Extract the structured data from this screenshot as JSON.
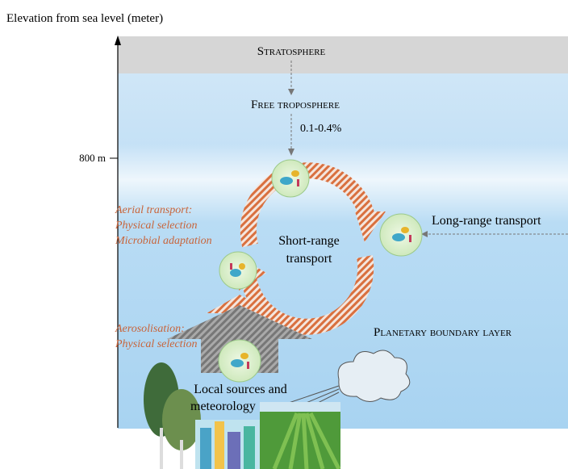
{
  "axis": {
    "title": "Elevation from sea level (meter)",
    "tick_label": "800 m"
  },
  "layers": {
    "stratosphere": "Stratosphere",
    "free_troposphere": "Free troposphere",
    "boundary_layer": "Planetary boundary layer"
  },
  "flux": "0.1-0.4%",
  "processes": {
    "aerial": [
      "Aerial transport:",
      "Physical selection",
      "Microbial adaptation"
    ],
    "short_range": [
      "Short-range",
      "transport"
    ],
    "long_range": "Long-range transport",
    "aerosolisation": [
      "Aerosolisation:",
      "Physical selection"
    ],
    "sources": [
      "Local sources and",
      "meteorology"
    ]
  }
}
